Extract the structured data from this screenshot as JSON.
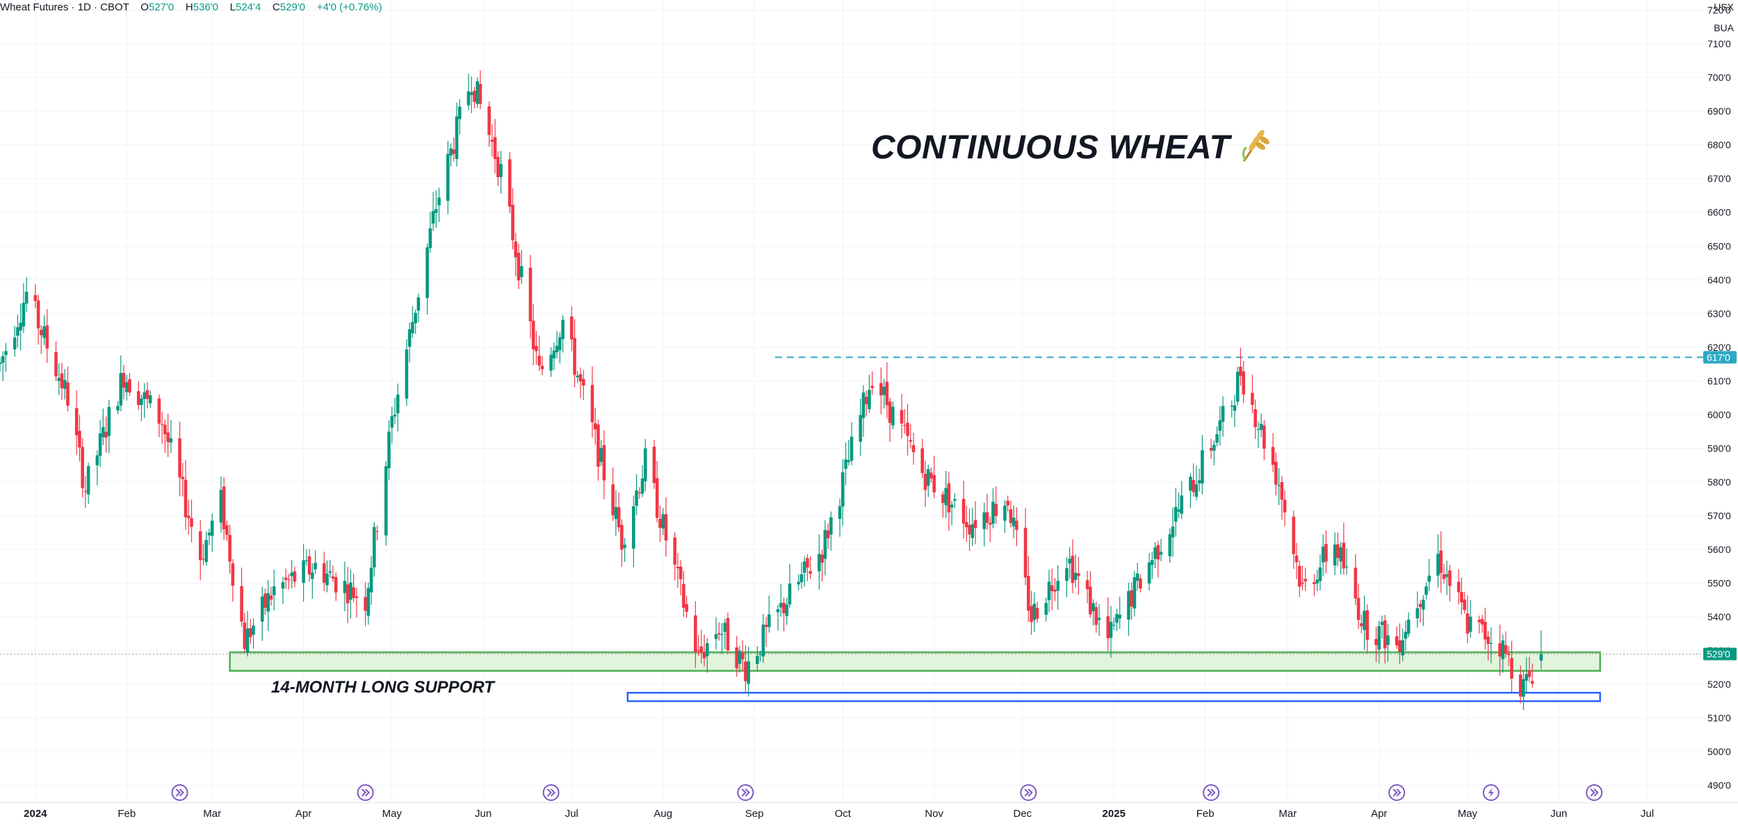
{
  "legend": {
    "symbol": "Wheat Futures · 1D · CBOT",
    "open_label": "O",
    "open": "527'0",
    "high_label": "H",
    "high": "536'0",
    "low_label": "L",
    "low": "524'4",
    "close_label": "C",
    "close": "529'0",
    "change": "+4'0 (+0.76%)"
  },
  "currency": "USX",
  "unit": "BUA",
  "annotations": {
    "headline": "CONTINUOUS WHEAT",
    "headline_icon": "wheat-emoji",
    "support_label": "14-MONTH LONG SUPPORT"
  },
  "colors": {
    "up": "#089981",
    "down": "#f23645",
    "resistance_line": "#2ea9c4",
    "support_zone_fill": "#e3f4dd",
    "support_zone_border": "#4caf50",
    "lower_zone_border": "#2962ff",
    "event_icon": "#7e57c2"
  },
  "chart_data": {
    "type": "candlestick",
    "y_range": [
      485,
      723
    ],
    "y_ticks": [
      "490'0",
      "500'0",
      "510'0",
      "520'0",
      "530'0",
      "540'0",
      "550'0",
      "560'0",
      "570'0",
      "580'0",
      "590'0",
      "600'0",
      "610'0",
      "620'0",
      "630'0",
      "640'0",
      "650'0",
      "660'0",
      "670'0",
      "680'0",
      "690'0",
      "700'0",
      "710'0",
      "720'0"
    ],
    "x_range": [
      "2023-12-20",
      "2025-07-20"
    ],
    "x_ticks": [
      {
        "label": "2024",
        "date": "2024-01-01",
        "bold": true
      },
      {
        "label": "Feb",
        "date": "2024-02-01"
      },
      {
        "label": "Mar",
        "date": "2024-03-01"
      },
      {
        "label": "Apr",
        "date": "2024-04-01"
      },
      {
        "label": "May",
        "date": "2024-05-01"
      },
      {
        "label": "Jun",
        "date": "2024-06-01"
      },
      {
        "label": "Jul",
        "date": "2024-07-01"
      },
      {
        "label": "Aug",
        "date": "2024-08-01"
      },
      {
        "label": "Sep",
        "date": "2024-09-01"
      },
      {
        "label": "Oct",
        "date": "2024-10-01"
      },
      {
        "label": "Nov",
        "date": "2024-11-01"
      },
      {
        "label": "Dec",
        "date": "2024-12-01"
      },
      {
        "label": "2025",
        "date": "2025-01-01",
        "bold": true
      },
      {
        "label": "Feb",
        "date": "2025-02-01"
      },
      {
        "label": "Mar",
        "date": "2025-03-01"
      },
      {
        "label": "Apr",
        "date": "2025-04-01"
      },
      {
        "label": "May",
        "date": "2025-05-01"
      },
      {
        "label": "Jun",
        "date": "2025-06-01"
      },
      {
        "label": "Jul",
        "date": "2025-07-01"
      }
    ],
    "keypoints": [
      [
        "2023-12-20",
        615
      ],
      [
        "2023-12-29",
        636
      ],
      [
        "2024-01-12",
        605
      ],
      [
        "2024-01-18",
        578
      ],
      [
        "2024-01-31",
        612
      ],
      [
        "2024-02-13",
        598
      ],
      [
        "2024-02-26",
        558
      ],
      [
        "2024-03-04",
        574
      ],
      [
        "2024-03-12",
        533
      ],
      [
        "2024-03-22",
        548
      ],
      [
        "2024-04-05",
        555
      ],
      [
        "2024-04-22",
        545
      ],
      [
        "2024-05-01",
        598
      ],
      [
        "2024-05-16",
        662
      ],
      [
        "2024-05-28",
        700
      ],
      [
        "2024-06-07",
        672
      ],
      [
        "2024-06-20",
        612
      ],
      [
        "2024-06-28",
        628
      ],
      [
        "2024-07-18",
        563
      ],
      [
        "2024-07-26",
        586
      ],
      [
        "2024-08-13",
        528
      ],
      [
        "2024-08-20",
        537
      ],
      [
        "2024-08-29",
        525
      ],
      [
        "2024-09-12",
        545
      ],
      [
        "2024-09-24",
        560
      ],
      [
        "2024-10-01",
        580
      ],
      [
        "2024-10-11",
        612
      ],
      [
        "2024-10-28",
        583
      ],
      [
        "2024-11-13",
        568
      ],
      [
        "2024-11-26",
        575
      ],
      [
        "2024-12-04",
        540
      ],
      [
        "2024-12-16",
        558
      ],
      [
        "2024-12-30",
        533
      ],
      [
        "2025-01-08",
        548
      ],
      [
        "2025-01-28",
        580
      ],
      [
        "2025-02-10",
        604
      ],
      [
        "2025-02-13",
        613
      ],
      [
        "2025-02-26",
        580
      ],
      [
        "2025-03-06",
        548
      ],
      [
        "2025-03-17",
        562
      ],
      [
        "2025-03-27",
        538
      ],
      [
        "2025-04-07",
        532
      ],
      [
        "2025-04-21",
        558
      ],
      [
        "2025-05-01",
        538
      ],
      [
        "2025-05-12",
        532
      ],
      [
        "2025-05-20",
        519
      ],
      [
        "2025-05-26",
        529
      ]
    ],
    "last_close": 529,
    "resistance": {
      "value": 617,
      "label": "617'0",
      "from": "2024-09-08"
    },
    "current_price_label": "529'0",
    "support_zone": {
      "from": "2024-03-07",
      "to": "2025-06-15",
      "low": 524,
      "high": 529.5
    },
    "lower_zone": {
      "from": "2024-07-20",
      "to": "2025-06-15",
      "low": 515,
      "high": 517.5
    },
    "event_markers": [
      {
        "date": "2024-02-19",
        "icon": "arrow"
      },
      {
        "date": "2024-04-22",
        "icon": "arrow"
      },
      {
        "date": "2024-06-24",
        "icon": "arrow"
      },
      {
        "date": "2024-08-29",
        "icon": "arrow"
      },
      {
        "date": "2024-12-03",
        "icon": "arrow"
      },
      {
        "date": "2025-02-03",
        "icon": "arrow"
      },
      {
        "date": "2025-04-07",
        "icon": "arrow"
      },
      {
        "date": "2025-05-09",
        "icon": "lightning"
      },
      {
        "date": "2025-06-13",
        "icon": "arrow"
      }
    ]
  }
}
